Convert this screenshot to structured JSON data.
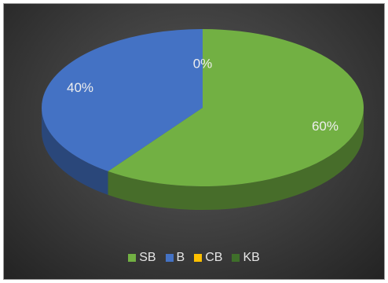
{
  "chart_data": {
    "type": "pie",
    "style": "3d",
    "legend_position": "bottom",
    "categories": [
      "SB",
      "B",
      "CB",
      "KB"
    ],
    "values": [
      60,
      40,
      0,
      0
    ],
    "labels": [
      "60%",
      "40%",
      "0%",
      ""
    ],
    "colors": [
      "#72b043",
      "#4472c4",
      "#ffc000",
      "#3f6f2a"
    ]
  }
}
